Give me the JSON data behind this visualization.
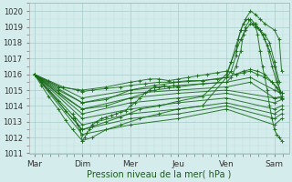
{
  "xlabel": "Pression niveau de la mer( hPa )",
  "bg_color": "#d4ecec",
  "grid_major_color": "#aacccc",
  "grid_minor_color": "#c0dddd",
  "line_color": "#1a6b1a",
  "ylim": [
    1011,
    1020.5
  ],
  "yticks": [
    1011,
    1012,
    1013,
    1014,
    1015,
    1016,
    1017,
    1018,
    1019,
    1020
  ],
  "xtick_labels": [
    "Mar",
    "Dim",
    "Mer",
    "Jeu",
    "Ven",
    "Sam"
  ],
  "xtick_positions": [
    0,
    1,
    2,
    3,
    4,
    5
  ],
  "xlim": [
    -0.1,
    5.3
  ],
  "lines": [
    {
      "x": [
        0,
        0.15,
        0.3,
        0.5,
        0.65,
        0.8,
        1.0,
        1.2,
        1.5,
        1.8,
        2.2,
        2.6,
        3.0,
        3.5,
        4.0,
        4.1,
        4.2,
        4.3,
        4.4,
        4.5,
        4.6,
        4.7,
        4.8,
        5.0,
        5.1,
        5.15
      ],
      "y": [
        1016.0,
        1015.3,
        1014.6,
        1013.8,
        1013.1,
        1012.5,
        1011.8,
        1012.0,
        1012.5,
        1012.8,
        1013.2,
        1013.5,
        1013.8,
        1014.0,
        1015.8,
        1016.8,
        1017.8,
        1018.8,
        1019.5,
        1020.0,
        1019.8,
        1019.5,
        1019.2,
        1018.8,
        1018.2,
        1016.2
      ]
    },
    {
      "x": [
        0,
        0.15,
        0.3,
        0.5,
        0.65,
        0.8,
        1.0,
        1.2,
        1.5,
        1.8,
        2.2,
        2.6,
        3.0,
        3.5,
        4.0,
        4.1,
        4.2,
        4.3,
        4.4,
        4.5,
        4.6,
        4.7,
        4.8,
        4.9,
        5.0,
        5.1
      ],
      "y": [
        1016.0,
        1015.5,
        1015.0,
        1014.3,
        1013.7,
        1013.2,
        1012.5,
        1012.7,
        1013.0,
        1013.3,
        1013.8,
        1014.0,
        1014.3,
        1014.6,
        1016.0,
        1016.8,
        1017.5,
        1018.2,
        1018.8,
        1019.2,
        1019.0,
        1018.8,
        1018.5,
        1018.0,
        1016.8,
        1015.5
      ]
    },
    {
      "x": [
        0,
        0.5,
        1.0,
        1.5,
        2.0,
        2.5,
        3.0,
        3.5,
        4.0,
        4.1,
        4.2,
        4.3,
        4.35,
        4.4,
        4.5,
        4.6,
        4.7,
        4.8,
        4.9,
        5.0,
        5.15
      ],
      "y": [
        1016.0,
        1014.8,
        1013.8,
        1014.0,
        1014.5,
        1015.0,
        1015.2,
        1015.4,
        1015.5,
        1015.8,
        1016.5,
        1017.5,
        1018.5,
        1019.0,
        1019.5,
        1019.2,
        1018.8,
        1018.2,
        1017.5,
        1016.5,
        1014.5
      ]
    },
    {
      "x": [
        0,
        0.5,
        1.0,
        1.5,
        2.0,
        2.5,
        3.0,
        3.5,
        4.0,
        4.1,
        4.2,
        4.25,
        4.3,
        4.35,
        4.45,
        4.55,
        4.65,
        4.75,
        4.85,
        4.95,
        5.05,
        5.15
      ],
      "y": [
        1016.0,
        1015.0,
        1014.2,
        1014.4,
        1015.0,
        1015.3,
        1015.5,
        1015.6,
        1015.8,
        1016.2,
        1017.2,
        1018.2,
        1018.8,
        1019.2,
        1019.5,
        1019.2,
        1019.0,
        1018.5,
        1017.8,
        1016.5,
        1015.5,
        1014.8
      ]
    },
    {
      "x": [
        0,
        1.0,
        2.0,
        3.0,
        4.0,
        4.5,
        5.0,
        5.15
      ],
      "y": [
        1016.0,
        1014.5,
        1015.0,
        1015.3,
        1015.5,
        1015.8,
        1015.0,
        1014.8
      ]
    },
    {
      "x": [
        0,
        1.0,
        2.0,
        3.0,
        4.0,
        4.5,
        5.0,
        5.15
      ],
      "y": [
        1016.0,
        1014.2,
        1014.8,
        1015.0,
        1015.2,
        1015.5,
        1014.5,
        1014.6
      ]
    },
    {
      "x": [
        0,
        1.0,
        2.0,
        3.0,
        4.0,
        5.0,
        5.15
      ],
      "y": [
        1016.0,
        1013.8,
        1014.5,
        1014.8,
        1015.0,
        1014.5,
        1014.5
      ]
    },
    {
      "x": [
        0,
        1.0,
        2.0,
        3.0,
        4.0,
        5.0,
        5.15
      ],
      "y": [
        1016.0,
        1013.5,
        1014.2,
        1014.5,
        1014.8,
        1014.2,
        1014.4
      ]
    },
    {
      "x": [
        0,
        1.0,
        2.0,
        3.0,
        4.0,
        5.0,
        5.15
      ],
      "y": [
        1016.0,
        1013.2,
        1013.8,
        1014.2,
        1014.5,
        1013.8,
        1014.0
      ]
    },
    {
      "x": [
        0,
        1.0,
        2.0,
        3.0,
        4.0,
        5.0,
        5.15
      ],
      "y": [
        1016.0,
        1012.8,
        1013.5,
        1013.8,
        1014.2,
        1013.5,
        1013.8
      ]
    },
    {
      "x": [
        0,
        1.0,
        2.0,
        3.0,
        4.0,
        5.0,
        5.15
      ],
      "y": [
        1016.0,
        1012.5,
        1013.2,
        1013.5,
        1014.0,
        1013.2,
        1013.5
      ]
    },
    {
      "x": [
        0,
        1.0,
        2.0,
        3.0,
        4.0,
        5.0,
        5.15
      ],
      "y": [
        1016.0,
        1012.2,
        1012.8,
        1013.2,
        1013.8,
        1012.8,
        1013.2
      ]
    },
    {
      "x": [
        0,
        0.5,
        1.0,
        1.5,
        2.0,
        2.2,
        2.4,
        2.6,
        2.8,
        3.0,
        3.2,
        3.4,
        3.6,
        3.8,
        4.0,
        4.2,
        4.35,
        4.5,
        4.65,
        4.8,
        4.95,
        5.05,
        5.15
      ],
      "y": [
        1016.0,
        1015.2,
        1015.0,
        1015.2,
        1015.5,
        1015.6,
        1015.7,
        1015.7,
        1015.6,
        1015.7,
        1015.8,
        1015.9,
        1016.0,
        1016.1,
        1016.2,
        1016.0,
        1016.2,
        1016.3,
        1016.2,
        1016.0,
        1015.5,
        1015.2,
        1014.8
      ]
    },
    {
      "x": [
        0,
        0.3,
        0.6,
        0.9,
        1.0,
        1.2,
        1.5,
        1.8,
        2.0,
        2.3,
        2.6,
        2.9,
        3.2,
        3.5,
        3.8,
        4.0,
        4.2,
        4.35,
        4.5,
        4.65,
        4.8,
        4.95,
        5.1
      ],
      "y": [
        1016.0,
        1015.6,
        1015.2,
        1015.0,
        1014.9,
        1015.0,
        1015.1,
        1015.2,
        1015.3,
        1015.4,
        1015.5,
        1015.5,
        1015.6,
        1015.6,
        1015.7,
        1015.8,
        1016.0,
        1016.1,
        1016.2,
        1016.0,
        1015.8,
        1015.5,
        1014.9
      ]
    },
    {
      "x": [
        0.8,
        0.85,
        0.9,
        0.95,
        1.0,
        1.05,
        1.1,
        1.15,
        1.2,
        1.3,
        1.4,
        1.5,
        1.6,
        1.7,
        1.8,
        1.9,
        2.0,
        2.1,
        2.2,
        2.3,
        2.4,
        2.5,
        2.6,
        2.7,
        2.8,
        2.9,
        3.0
      ],
      "y": [
        1013.5,
        1013.2,
        1012.8,
        1012.5,
        1011.8,
        1012.0,
        1012.3,
        1012.5,
        1012.8,
        1013.0,
        1013.2,
        1013.3,
        1013.4,
        1013.5,
        1013.6,
        1013.7,
        1014.0,
        1014.2,
        1014.5,
        1014.8,
        1015.0,
        1015.2,
        1015.2,
        1015.3,
        1015.2,
        1015.3,
        1015.2
      ]
    },
    {
      "x": [
        4.6,
        4.65,
        4.7,
        4.75,
        4.8,
        4.85,
        4.9,
        4.95,
        5.0,
        5.05,
        5.1,
        5.15
      ],
      "y": [
        1019.2,
        1018.5,
        1017.5,
        1016.5,
        1015.8,
        1015.0,
        1014.0,
        1013.2,
        1012.5,
        1012.2,
        1012.0,
        1011.8
      ]
    }
  ]
}
